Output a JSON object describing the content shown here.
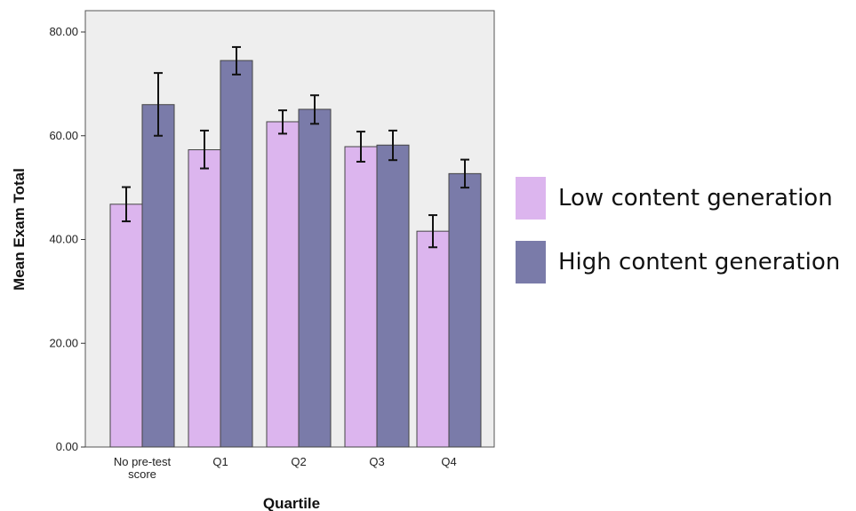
{
  "colors": {
    "low": "#dcb5ee",
    "high": "#7a7ba9",
    "plot_bg": "#eeeeee",
    "error_bar": "#111111"
  },
  "chart_data": {
    "type": "bar",
    "xlabel": "Quartile",
    "ylabel": "Mean Exam Total",
    "ylim": [
      0,
      80
    ],
    "yticks": [
      "0.00",
      "20.00",
      "40.00",
      "60.00",
      "80.00"
    ],
    "categories": [
      [
        "No pre-test",
        "score"
      ],
      [
        "Q1"
      ],
      [
        "Q2"
      ],
      [
        "Q3"
      ],
      [
        "Q4"
      ]
    ],
    "series": [
      {
        "name": "Low content generation",
        "color_key": "low",
        "values": [
          46.8,
          57.3,
          62.7,
          57.9,
          41.6
        ],
        "error_low": [
          43.5,
          53.7,
          60.4,
          55.0,
          38.5
        ],
        "error_high": [
          50.1,
          61.0,
          64.9,
          60.8,
          44.7
        ]
      },
      {
        "name": "High content generation",
        "color_key": "high",
        "values": [
          66.0,
          74.5,
          65.1,
          58.2,
          52.7
        ],
        "error_low": [
          60.0,
          71.8,
          62.3,
          55.3,
          50.0
        ],
        "error_high": [
          72.1,
          77.1,
          67.8,
          61.0,
          55.4
        ]
      }
    ],
    "legend_position": "right",
    "grid": false
  }
}
